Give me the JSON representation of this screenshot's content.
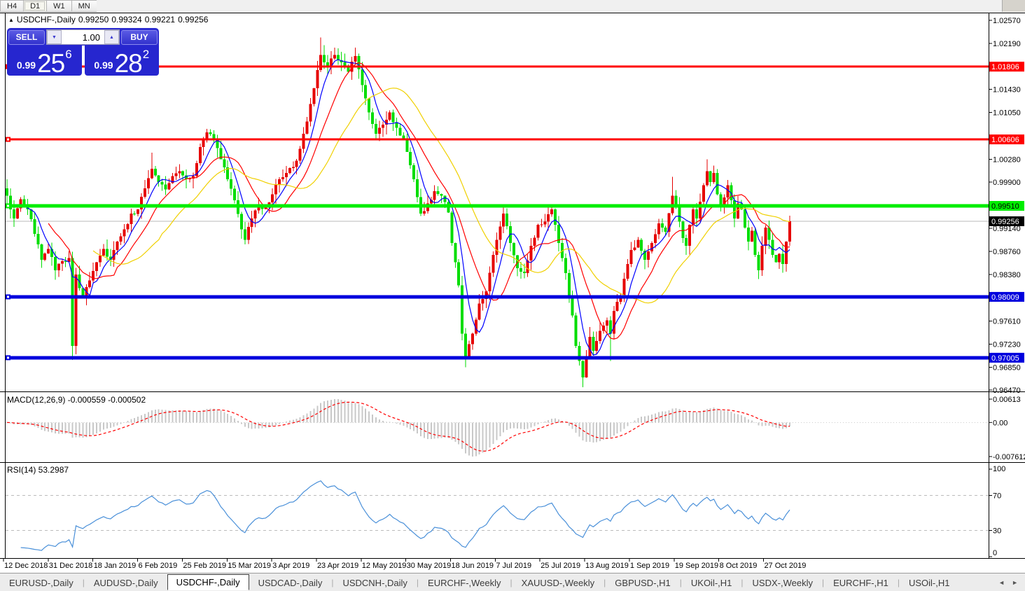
{
  "toolbar": {
    "buttons": [
      {
        "label": "H4",
        "active": false
      },
      {
        "label": "D1",
        "active": true
      },
      {
        "label": "W1",
        "active": false
      },
      {
        "label": "MN",
        "active": false
      }
    ]
  },
  "symbol_header": {
    "collapse_icon": "▲",
    "symbol": "USDCHF-,Daily",
    "open": "0.99250",
    "high": "0.99324",
    "low": "0.99221",
    "close": "0.99256"
  },
  "trade_panel": {
    "sell_label": "SELL",
    "buy_label": "BUY",
    "volume": "1.00",
    "spinner_down_icon": "▼",
    "spinner_up_icon": "▲",
    "sell_price": {
      "base": "0.99",
      "pips": "25",
      "pip_fraction": "6"
    },
    "buy_price": {
      "base": "0.99",
      "pips": "28",
      "pip_fraction": "2"
    }
  },
  "chart_data": {
    "type": "candlestick",
    "symbol": "USDCHF-",
    "timeframe": "Daily",
    "ohlc_display": {
      "open": 0.9925,
      "high": 0.99324,
      "low": 0.99221,
      "close": 0.99256
    },
    "candle_count": 228,
    "up_color": "#e60000",
    "down_color": "#00dd00",
    "visible_range": {
      "top_price": 1.02686,
      "bottom_price": 0.96449
    },
    "y_axis_ticks": [
      1.0257,
      1.0219,
      1.0143,
      1.0105,
      1.0028,
      0.999,
      0.9914,
      0.9876,
      0.9838,
      0.9761,
      0.9723,
      0.9685,
      0.9647
    ],
    "h_lines": [
      {
        "price": 1.01806,
        "label": "1.01806",
        "color": "#ff0000",
        "width": 3,
        "text_color": "#ffffff"
      },
      {
        "price": 1.00606,
        "label": "1.00606",
        "color": "#ff0000",
        "width": 3,
        "text_color": "#ffffff"
      },
      {
        "price": 0.9951,
        "label": "0.99510",
        "color": "#00ee00",
        "width": 5,
        "text_color": "#000000"
      },
      {
        "price": 0.98009,
        "label": "0.98009",
        "color": "#0000dd",
        "width": 5,
        "text_color": "#ffffff"
      },
      {
        "price": 0.97005,
        "label": "0.97005",
        "color": "#0000dd",
        "width": 5,
        "text_color": "#ffffff"
      }
    ],
    "current_price": {
      "value": 0.99256,
      "label": "0.99256",
      "line_color": "#b8b8b8",
      "box_color": "#000000",
      "text_color": "#ffffff"
    },
    "close_path_anchors": [
      [
        0,
        0.9968
      ],
      [
        2,
        0.993
      ],
      [
        4,
        0.9962
      ],
      [
        6,
        0.9945
      ],
      [
        8,
        0.9905
      ],
      [
        10,
        0.9862
      ],
      [
        12,
        0.988
      ],
      [
        14,
        0.9845
      ],
      [
        16,
        0.986
      ],
      [
        18,
        0.9865
      ],
      [
        19,
        0.972
      ],
      [
        20,
        0.9838
      ],
      [
        22,
        0.98
      ],
      [
        24,
        0.9828
      ],
      [
        26,
        0.9858
      ],
      [
        28,
        0.988
      ],
      [
        30,
        0.9862
      ],
      [
        32,
        0.9892
      ],
      [
        34,
        0.9912
      ],
      [
        36,
        0.9938
      ],
      [
        38,
        0.9945
      ],
      [
        40,
        0.998
      ],
      [
        42,
        1.0012
      ],
      [
        44,
        0.999
      ],
      [
        46,
        0.9978
      ],
      [
        48,
        1.0
      ],
      [
        50,
        1.0008
      ],
      [
        52,
        0.9995
      ],
      [
        54,
        1.0
      ],
      [
        56,
        1.0048
      ],
      [
        58,
        1.0072
      ],
      [
        60,
        1.006
      ],
      [
        62,
        1.0028
      ],
      [
        64,
        0.9995
      ],
      [
        66,
        0.996
      ],
      [
        68,
        0.9912
      ],
      [
        69,
        0.9895
      ],
      [
        71,
        0.993
      ],
      [
        73,
        0.995
      ],
      [
        75,
        0.9948
      ],
      [
        77,
        0.997
      ],
      [
        79,
        0.9995
      ],
      [
        81,
        1.0005
      ],
      [
        83,
        1.0015
      ],
      [
        85,
        1.0045
      ],
      [
        87,
        1.009
      ],
      [
        89,
        1.0145
      ],
      [
        90,
        1.0175
      ],
      [
        91,
        1.02
      ],
      [
        93,
        1.018
      ],
      [
        95,
        1.02
      ],
      [
        97,
        1.0188
      ],
      [
        99,
        1.0172
      ],
      [
        101,
        1.0198
      ],
      [
        103,
        1.015
      ],
      [
        105,
        1.0105
      ],
      [
        107,
        1.007
      ],
      [
        109,
        1.0085
      ],
      [
        111,
        1.0105
      ],
      [
        113,
        1.008
      ],
      [
        115,
        1.006
      ],
      [
        116,
        1.004
      ],
      [
        118,
        0.9995
      ],
      [
        120,
        0.9938
      ],
      [
        122,
        0.9955
      ],
      [
        124,
        0.9975
      ],
      [
        126,
        0.9968
      ],
      [
        128,
        0.994
      ],
      [
        129,
        0.989
      ],
      [
        131,
        0.982
      ],
      [
        132,
        0.974
      ],
      [
        133,
        0.97
      ],
      [
        135,
        0.974
      ],
      [
        137,
        0.979
      ],
      [
        139,
        0.981
      ],
      [
        141,
        0.987
      ],
      [
        142,
        0.9895
      ],
      [
        144,
        0.9938
      ],
      [
        146,
        0.989
      ],
      [
        148,
        0.9848
      ],
      [
        150,
        0.984
      ],
      [
        152,
        0.9885
      ],
      [
        154,
        0.992
      ],
      [
        156,
        0.9925
      ],
      [
        158,
        0.9945
      ],
      [
        159,
        0.992
      ],
      [
        160,
        0.989
      ],
      [
        161,
        0.9865
      ],
      [
        162,
        0.984
      ],
      [
        163,
        0.98
      ],
      [
        164,
        0.977
      ],
      [
        165,
        0.972
      ],
      [
        166,
        0.9695
      ],
      [
        167,
        0.9668
      ],
      [
        168,
        0.97
      ],
      [
        169,
        0.9735
      ],
      [
        170,
        0.9712
      ],
      [
        172,
        0.9745
      ],
      [
        174,
        0.9762
      ],
      [
        175,
        0.974
      ],
      [
        176,
        0.9778
      ],
      [
        178,
        0.98
      ],
      [
        180,
        0.9855
      ],
      [
        181,
        0.9878
      ],
      [
        183,
        0.9895
      ],
      [
        185,
        0.9862
      ],
      [
        187,
        0.989
      ],
      [
        189,
        0.9922
      ],
      [
        191,
        0.9908
      ],
      [
        193,
        0.9968
      ],
      [
        194,
        0.995
      ],
      [
        195,
        0.9925
      ],
      [
        196,
        0.9898
      ],
      [
        197,
        0.9885
      ],
      [
        198,
        0.992
      ],
      [
        199,
        0.9945
      ],
      [
        200,
        0.993
      ],
      [
        201,
        0.9958
      ],
      [
        202,
        0.9985
      ],
      [
        203,
        1.0008
      ],
      [
        204,
        0.999
      ],
      [
        205,
        1.0005
      ],
      [
        206,
        0.997
      ],
      [
        207,
        0.9948
      ],
      [
        208,
        0.9965
      ],
      [
        209,
        0.9985
      ],
      [
        210,
        0.996
      ],
      [
        211,
        0.993
      ],
      [
        212,
        0.9955
      ],
      [
        213,
        0.9945
      ],
      [
        214,
        0.9915
      ],
      [
        215,
        0.9892
      ],
      [
        216,
        0.991
      ],
      [
        217,
        0.987
      ],
      [
        218,
        0.9845
      ],
      [
        219,
        0.9885
      ],
      [
        220,
        0.9915
      ],
      [
        221,
        0.9895
      ],
      [
        222,
        0.987
      ],
      [
        223,
        0.9858
      ],
      [
        224,
        0.9872
      ],
      [
        225,
        0.9855
      ],
      [
        226,
        0.9892
      ],
      [
        227,
        0.99256
      ]
    ],
    "wick_points": [
      {
        "i": 19,
        "low": 0.9697
      },
      {
        "i": 42,
        "high": 1.0039
      },
      {
        "i": 58,
        "high": 1.0078
      },
      {
        "i": 91,
        "high": 1.0229
      },
      {
        "i": 101,
        "high": 1.0212
      },
      {
        "i": 133,
        "low": 0.9685
      },
      {
        "i": 167,
        "low": 0.9652
      },
      {
        "i": 175,
        "low": 0.9695
      },
      {
        "i": 193,
        "high": 0.9999
      },
      {
        "i": 203,
        "high": 1.0028
      },
      {
        "i": 218,
        "low": 0.983
      }
    ],
    "moving_averages": [
      {
        "name": "fast",
        "period": 6,
        "color": "#0000ff"
      },
      {
        "name": "medium",
        "period": 13,
        "color": "#ff0000"
      },
      {
        "name": "slow",
        "period": 26,
        "color": "#f0d000"
      }
    ],
    "x_axis_labels": [
      "12 Dec 2018",
      "31 Dec 2018",
      "18 Jan 2019",
      "6 Feb 2019",
      "25 Feb 2019",
      "15 Mar 2019",
      "3 Apr 2019",
      "23 Apr 2019",
      "12 May 2019",
      "30 May 2019",
      "18 Jun 2019",
      "7 Jul 2019",
      "25 Jul 2019",
      "13 Aug 2019",
      "1 Sep 2019",
      "19 Sep 2019",
      "8 Oct 2019",
      "27 Oct 2019"
    ],
    "macd": {
      "label": "MACD(12,26,9) -0.000559 -0.000502",
      "params": [
        12,
        26,
        9
      ],
      "macd_value": -0.000559,
      "signal_value": -0.000502,
      "axis_labels": {
        "max": "0.00613",
        "zero": "0.00",
        "min": "-0.007612"
      },
      "bar_color": "#c8c8c8",
      "signal_color": "#ff0000"
    },
    "rsi": {
      "label": "RSI(14) 53.2987",
      "period": 14,
      "value": 53.2987,
      "axis_labels": [
        "100",
        "70",
        "30",
        "0"
      ],
      "levels": [
        70,
        30
      ],
      "line_color": "#4a90d9",
      "level_line_color": "#bbbbbb"
    }
  },
  "tabs": {
    "items": [
      {
        "label": "EURUSD-,Daily",
        "active": false
      },
      {
        "label": "AUDUSD-,Daily",
        "active": false
      },
      {
        "label": "USDCHF-,Daily",
        "active": true
      },
      {
        "label": "USDCAD-,Daily",
        "active": false
      },
      {
        "label": "USDCNH-,Daily",
        "active": false
      },
      {
        "label": "EURCHF-,Weekly",
        "active": false
      },
      {
        "label": "XAUUSD-,Weekly",
        "active": false
      },
      {
        "label": "GBPUSD-,H1",
        "active": false
      },
      {
        "label": "UKOil-,H1",
        "active": false
      },
      {
        "label": "USDX-,Weekly",
        "active": false
      },
      {
        "label": "EURCHF-,H1",
        "active": false
      },
      {
        "label": "USOil-,H1",
        "active": false
      }
    ],
    "scroll_left_icon": "◄",
    "scroll_right_icon": "►"
  }
}
